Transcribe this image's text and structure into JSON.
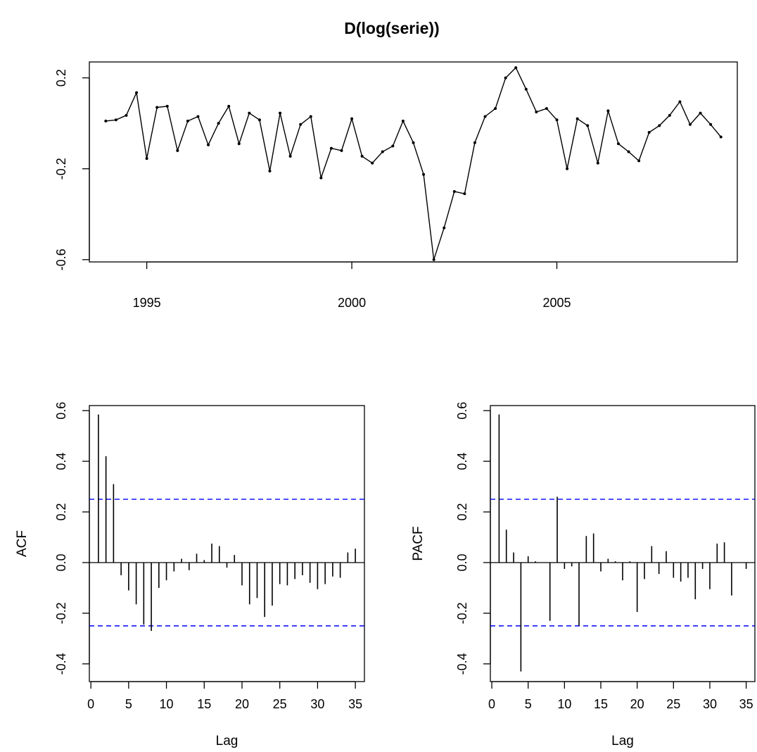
{
  "figure": {
    "title": "D(log(serie))"
  },
  "chart_data": [
    {
      "type": "line",
      "title": "D(log(serie))",
      "xlabel": "",
      "ylabel": "",
      "x_start": 1994.0,
      "x_step": 0.25,
      "xlim": [
        1993.6,
        2009.4
      ],
      "ylim": [
        -0.61,
        0.27
      ],
      "x_ticks": [
        1995,
        2000,
        2005
      ],
      "y_ticks": [
        -0.6,
        -0.2,
        0.2
      ],
      "x_tick_labels": [
        "1995",
        "2000",
        "2005"
      ],
      "y_tick_labels": [
        "-0.6",
        "-0.2",
        "0.2"
      ],
      "values": [
        0.01,
        0.015,
        0.035,
        0.135,
        -0.155,
        0.07,
        0.075,
        -0.12,
        0.01,
        0.03,
        -0.095,
        0.0,
        0.075,
        -0.09,
        0.045,
        0.015,
        -0.21,
        0.045,
        -0.145,
        -0.005,
        0.03,
        -0.24,
        -0.11,
        -0.12,
        0.02,
        -0.145,
        -0.175,
        -0.125,
        -0.1,
        0.01,
        -0.085,
        -0.225,
        -0.6,
        -0.46,
        -0.3,
        -0.31,
        -0.085,
        0.03,
        0.065,
        0.2,
        0.245,
        0.15,
        0.05,
        0.065,
        0.015,
        -0.2,
        0.02,
        -0.01,
        -0.175,
        0.055,
        -0.09,
        -0.125,
        -0.165,
        -0.04,
        -0.01,
        0.035,
        0.095,
        -0.005,
        0.045,
        -0.005,
        -0.06
      ],
      "grid": false
    },
    {
      "type": "bar",
      "subtype": "acf",
      "xlabel": "Lag",
      "ylabel": "ACF",
      "xlim": [
        -0.2,
        36.2
      ],
      "ylim": [
        -0.47,
        0.62
      ],
      "x_ticks": [
        0,
        5,
        10,
        15,
        20,
        25,
        30,
        35
      ],
      "y_ticks": [
        -0.4,
        -0.2,
        0.0,
        0.2,
        0.4,
        0.6
      ],
      "x_tick_labels": [
        "0",
        "5",
        "10",
        "15",
        "20",
        "25",
        "30",
        "35"
      ],
      "y_tick_labels": [
        "-0.4",
        "-0.2",
        "0.0",
        "0.2",
        "0.4",
        "0.6"
      ],
      "lags": [
        1,
        2,
        3,
        4,
        5,
        6,
        7,
        8,
        9,
        10,
        11,
        12,
        13,
        14,
        15,
        16,
        17,
        18,
        19,
        20,
        21,
        22,
        23,
        24,
        25,
        26,
        27,
        28,
        29,
        30,
        31,
        32,
        33,
        34,
        35
      ],
      "values": [
        0.585,
        0.42,
        0.31,
        -0.05,
        -0.11,
        -0.165,
        -0.245,
        -0.27,
        -0.1,
        -0.07,
        -0.035,
        0.015,
        -0.03,
        0.035,
        0.01,
        0.075,
        0.065,
        -0.02,
        0.03,
        -0.09,
        -0.165,
        -0.14,
        -0.215,
        -0.17,
        -0.085,
        -0.09,
        -0.065,
        -0.05,
        -0.08,
        -0.105,
        -0.085,
        -0.055,
        -0.06,
        0.04,
        0.055
      ],
      "confidence_bound": 0.25,
      "grid": false
    },
    {
      "type": "bar",
      "subtype": "pacf",
      "xlabel": "Lag",
      "ylabel": "PACF",
      "xlim": [
        -0.2,
        36.2
      ],
      "ylim": [
        -0.47,
        0.62
      ],
      "x_ticks": [
        0,
        5,
        10,
        15,
        20,
        25,
        30,
        35
      ],
      "y_ticks": [
        -0.4,
        -0.2,
        0.0,
        0.2,
        0.4,
        0.6
      ],
      "x_tick_labels": [
        "0",
        "5",
        "10",
        "15",
        "20",
        "25",
        "30",
        "35"
      ],
      "y_tick_labels": [
        "-0.4",
        "-0.2",
        "0.0",
        "0.2",
        "0.4",
        "0.6"
      ],
      "lags": [
        1,
        2,
        3,
        4,
        5,
        6,
        7,
        8,
        9,
        10,
        11,
        12,
        13,
        14,
        15,
        16,
        17,
        18,
        19,
        20,
        21,
        22,
        23,
        24,
        25,
        26,
        27,
        28,
        29,
        30,
        31,
        32,
        33,
        34,
        35
      ],
      "values": [
        0.585,
        0.13,
        0.04,
        -0.43,
        0.025,
        0.005,
        0.0,
        -0.23,
        0.26,
        -0.025,
        -0.015,
        -0.25,
        0.105,
        0.115,
        -0.035,
        0.015,
        0.005,
        -0.07,
        0.005,
        -0.195,
        -0.065,
        0.065,
        -0.045,
        0.045,
        -0.06,
        -0.075,
        -0.06,
        -0.145,
        -0.025,
        -0.105,
        0.075,
        0.08,
        -0.13,
        0.0,
        -0.025
      ],
      "confidence_bound": 0.25,
      "grid": false
    }
  ],
  "colors": {
    "axis": "#000000",
    "series": "#000000",
    "confidence": "#0000ff",
    "background": "#ffffff"
  }
}
